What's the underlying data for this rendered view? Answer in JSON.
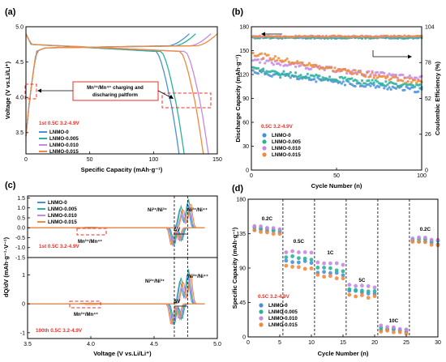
{
  "colors": {
    "LNMO-0": "#4a90d9",
    "LNMO-0.005": "#2ab29a",
    "LNMO-0.010": "#c58ae0",
    "LNMO-0.015": "#f08a3c",
    "annotation_red": "#e8302a"
  },
  "series_names": [
    "LNMO-0",
    "LNMO-0.005",
    "LNMO-0.010",
    "LNMO-0.015"
  ],
  "chart_data": [
    {
      "panel": "(a)",
      "type": "line",
      "xlabel": "Specific Capacity (mAh·g⁻¹)",
      "ylabel": "Voltage (V vs.Li/Li⁺)",
      "xlim": [
        0,
        150
      ],
      "ylim": [
        3.2,
        5.0
      ],
      "xticks": [
        0,
        50,
        100,
        150
      ],
      "yticks": [
        3.5,
        4.0,
        4.5,
        5.0
      ],
      "condition": "1st 0.5C 3.2-4.9V",
      "annotation": "Mn³⁺/Mn⁴⁺ charging and discharing paltform",
      "series": [
        {
          "name": "LNMO-0",
          "charge_capacity": 128,
          "discharge_capacity": 120
        },
        {
          "name": "LNMO-0.005",
          "charge_capacity": 133,
          "discharge_capacity": 124
        },
        {
          "name": "LNMO-0.010",
          "charge_capacity": 145,
          "discharge_capacity": 143
        },
        {
          "name": "LNMO-0.015",
          "charge_capacity": 150,
          "discharge_capacity": 139
        }
      ]
    },
    {
      "panel": "(b)",
      "type": "scatter",
      "xlabel": "Cycle Number (n)",
      "ylabel": "Discharge Capacity (mAh·g⁻¹)",
      "ylabel_right": "Coulombic Efficiency (%)",
      "xlim": [
        0,
        100
      ],
      "ylim": [
        0,
        180
      ],
      "ylim_right": [
        0,
        104
      ],
      "xticks": [
        0,
        50,
        100
      ],
      "yticks": [
        0,
        30,
        60,
        90,
        120,
        150,
        180
      ],
      "yticks_right": [
        0,
        26,
        52,
        78,
        104
      ],
      "condition": "0.5C  3.2-4.9V",
      "series": [
        {
          "name": "LNMO-0",
          "start": 125,
          "end": 100,
          "ce": 96
        },
        {
          "name": "LNMO-0.005",
          "start": 127,
          "end": 105,
          "ce": 96
        },
        {
          "name": "LNMO-0.010",
          "start": 140,
          "end": 115,
          "ce": 97
        },
        {
          "name": "LNMO-0.015",
          "start": 148,
          "end": 110,
          "ce": 97
        }
      ]
    },
    {
      "panel": "(c)",
      "type": "line",
      "xlabel": "Voltage (V vs.Li/Li⁺)",
      "ylabel": "dQ/dV (mAh·g⁻¹·V⁻¹)",
      "xlim": [
        3.5,
        5.0
      ],
      "xticks": [
        3.5,
        4.0,
        4.5,
        5.0
      ],
      "top": {
        "condition": "1st 0.5C 3.2-4.9V",
        "ylim": [
          -1.5,
          1.6
        ],
        "yticks": [
          -1.5,
          -1.0,
          -0.5,
          0.0,
          0.5,
          1.0,
          1.5
        ]
      },
      "bottom": {
        "condition": "100th 0.5C 3.2-4.9V",
        "ylim": [
          -1.2,
          1.6
        ],
        "yticks": [
          -1,
          0,
          1
        ]
      },
      "annotations": [
        "Ni²⁺/Ni³⁺",
        "Ni³⁺/Ni⁴⁺",
        "ΔV",
        "Mn³⁺/Mn⁴⁺"
      ]
    },
    {
      "panel": "(d)",
      "type": "scatter",
      "xlabel": "Cycle Number (n)",
      "ylabel": "Specific Capacity (mAh·g⁻¹)",
      "xlim": [
        0,
        30
      ],
      "ylim": [
        0,
        180
      ],
      "xticks": [
        0,
        5,
        10,
        15,
        20,
        25,
        30
      ],
      "yticks": [
        0,
        45,
        90,
        135,
        180
      ],
      "condition": "0.5C 3.2-4.9V",
      "rates": [
        "0.2C",
        "0.5C",
        "1C",
        "5C",
        "10C",
        "0.2C"
      ],
      "series": [
        {
          "name": "LNMO-0",
          "rate_values": [
            140,
            100,
            85,
            60,
            10,
            125
          ]
        },
        {
          "name": "LNMO-0.005",
          "rate_values": [
            142,
            105,
            90,
            62,
            12,
            128
          ]
        },
        {
          "name": "LNMO-0.010",
          "rate_values": [
            145,
            112,
            98,
            68,
            14,
            130
          ]
        },
        {
          "name": "LNMO-0.015",
          "rate_values": [
            138,
            92,
            80,
            55,
            8,
            124
          ]
        }
      ]
    }
  ],
  "labels": {
    "a": {
      "tag": "(a)",
      "xlabel": "Specific Capacity (mAh·g⁻¹)",
      "ylabel": "Voltage (V vs.Li/Li⁺)",
      "xt": [
        "0",
        "50",
        "100",
        "150"
      ],
      "yt": [
        "3.5",
        "4.0",
        "4.5",
        "5.0"
      ],
      "condition": "1st 0.5C 3.2-4.9V",
      "ann1": "Mn³⁺/Mn⁴⁺ charging and",
      "ann2": "discharing paltform"
    },
    "b": {
      "tag": "(b)",
      "xlabel": "Cycle Number (n)",
      "ylabel": "Discharge Capacity (mAh·g⁻¹)",
      "ylabel_right": "Coulombic Efficiency (%)",
      "xt": [
        "0",
        "50",
        "100"
      ],
      "yt": [
        "0",
        "30",
        "60",
        "90",
        "120",
        "150",
        "180"
      ],
      "yr": [
        "0",
        "26",
        "52",
        "78",
        "104"
      ],
      "condition": "0.5C  3.2-4.9V"
    },
    "c": {
      "tag": "(c)",
      "xlabel": "Voltage (V vs.Li/Li⁺)",
      "ylabel": "dQ/dV (mAh·g⁻¹·V⁻¹)",
      "xt": [
        "3.5",
        "4.0",
        "4.5",
        "5.0"
      ],
      "yt_top": [
        "-1.5",
        "-1.0",
        "-0.5",
        "0.0",
        "0.5",
        "1.0",
        "1.5"
      ],
      "yt_bot": [
        "-1",
        "0",
        "1"
      ],
      "cond_top": "1st 0.5C 3.2-4.9V",
      "cond_bot": "100th 0.5C 3.2-4.9V",
      "ni23": "Ni²⁺/Ni³⁺",
      "ni34": "Ni³⁺/Ni⁴⁺",
      "dv": "ΔV",
      "mn": "Mn³⁺/Mn⁴⁺"
    },
    "d": {
      "tag": "(d)",
      "xlabel": "Cycle Number (n)",
      "ylabel": "Specific Capacity (mAh·g⁻¹)",
      "xt": [
        "0",
        "5",
        "10",
        "15",
        "20",
        "25",
        "30"
      ],
      "yt": [
        "0",
        "45",
        "90",
        "135",
        "180"
      ],
      "condition": "0.5C 3.2-4.9V",
      "rates": [
        "0.2C",
        "0.5C",
        "1C",
        "5C",
        "10C",
        "0.2C"
      ]
    }
  }
}
